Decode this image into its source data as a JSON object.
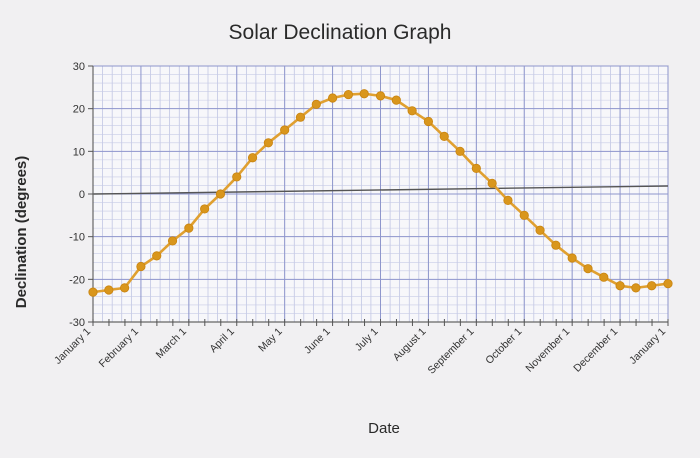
{
  "chart_data": {
    "type": "line",
    "title": "Solar Declination Graph",
    "xlabel": "Date",
    "ylabel": "Declination (degrees)",
    "ylim": [
      -30,
      30
    ],
    "yticks": [
      "30",
      "20",
      "10",
      "0",
      "-10",
      "-20",
      "-30"
    ],
    "ytick_values": [
      30,
      20,
      10,
      0,
      -10,
      -20,
      -30
    ],
    "x_tick_labels": [
      "January 1",
      "February 1",
      "March 1",
      "April 1",
      "May 1",
      "June 1",
      "July 1",
      "August 1",
      "September 1",
      "October 1",
      "November 1",
      "December 1",
      "January 1"
    ],
    "grid": true,
    "line_color": "#e0a030",
    "marker_color": "#d9961c",
    "zero_line_color": "#555555",
    "series": [
      {
        "x": [
          0,
          0.33,
          0.66,
          1,
          1.33,
          1.66,
          2,
          2.33,
          2.66,
          3,
          3.33,
          3.66,
          4,
          4.33,
          4.66,
          5,
          5.33,
          5.66,
          6,
          6.33,
          6.66,
          7,
          7.33,
          7.66,
          8,
          8.33,
          8.66,
          9,
          9.33,
          9.66,
          10,
          10.33,
          10.66,
          11,
          11.33,
          11.66,
          12
        ],
        "values": [
          -23,
          -22.5,
          -22,
          -17,
          -14.5,
          -11,
          -8,
          -3.5,
          0,
          4,
          8.5,
          12,
          15,
          18,
          21,
          22.5,
          23.3,
          23.5,
          23,
          22,
          19.5,
          17,
          13.5,
          10,
          6,
          2.5,
          -1.5,
          -5,
          -8.5,
          -12,
          -15,
          -17.5,
          -19.5,
          -21.5,
          -22,
          -21.5,
          -21
        ]
      }
    ]
  }
}
